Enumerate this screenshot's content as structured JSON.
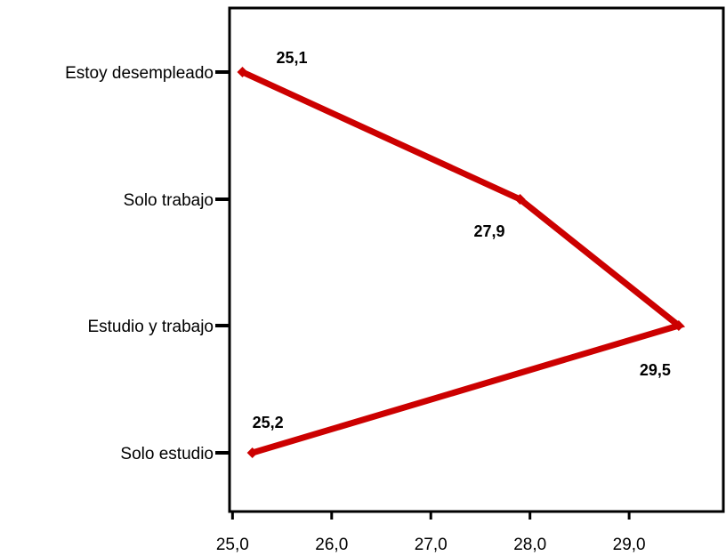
{
  "chart_data": {
    "type": "line",
    "orientation": "horizontal",
    "categories": [
      "Estoy desempleado",
      "Solo trabajo",
      "Estudio y trabajo",
      "Solo estudio"
    ],
    "values": [
      25.1,
      27.9,
      29.5,
      25.2
    ],
    "data_labels": [
      "25,1",
      "27,9",
      "29,5",
      "25,2"
    ],
    "x_ticks": [
      25.0,
      26.0,
      27.0,
      28.0,
      29.0
    ],
    "x_tick_labels": [
      "25,0",
      "26,0",
      "27,0",
      "28,0",
      "29,0"
    ],
    "xlim": [
      24.97,
      29.95
    ],
    "title": "",
    "xlabel": "",
    "ylabel": "",
    "grid": false,
    "series_color": "#cc0000",
    "marker": "diamond"
  }
}
